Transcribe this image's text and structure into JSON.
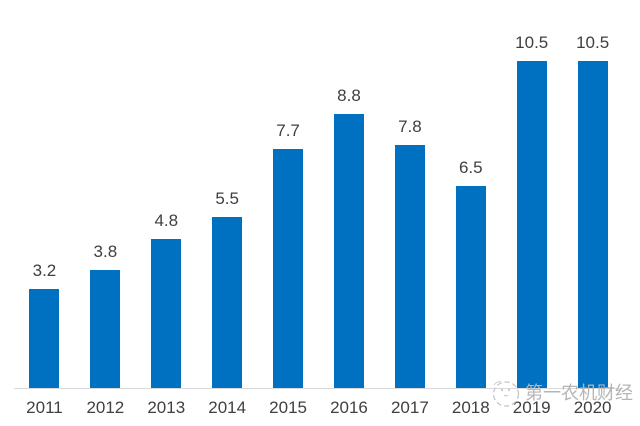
{
  "chart_data": {
    "type": "bar",
    "title": "",
    "xlabel": "",
    "ylabel": "",
    "categories": [
      "2011",
      "2012",
      "2013",
      "2014",
      "2015",
      "2016",
      "2017",
      "2018",
      "2019",
      "2020"
    ],
    "values": [
      3.2,
      3.8,
      4.8,
      5.5,
      7.7,
      8.8,
      7.8,
      6.5,
      10.5,
      10.5
    ],
    "ylim": [
      0,
      12.5
    ],
    "grid": false,
    "legend": false,
    "data_labels_shown": true,
    "bar_color": "#0070C0",
    "label_color": "#404040",
    "axis_line_color": "#d9d9d9"
  },
  "watermark": {
    "text": "第一农机财经",
    "color": "#b5b5b5",
    "logo": "bird-sketch-icon"
  }
}
